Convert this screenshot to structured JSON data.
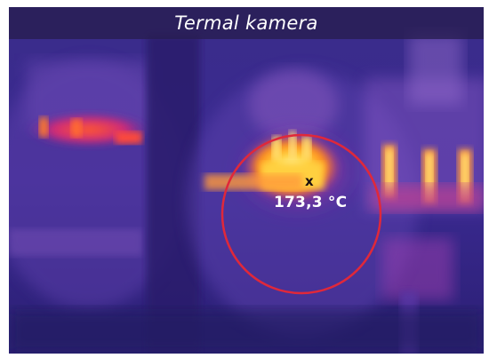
{
  "title": "Termal kamera",
  "measurement": {
    "marker_symbol": "x",
    "temperature": "173,3 °C"
  },
  "colors": {
    "measurement_circle": "#e0283a",
    "title_bar": "#281e50",
    "palette": "ironbow"
  }
}
